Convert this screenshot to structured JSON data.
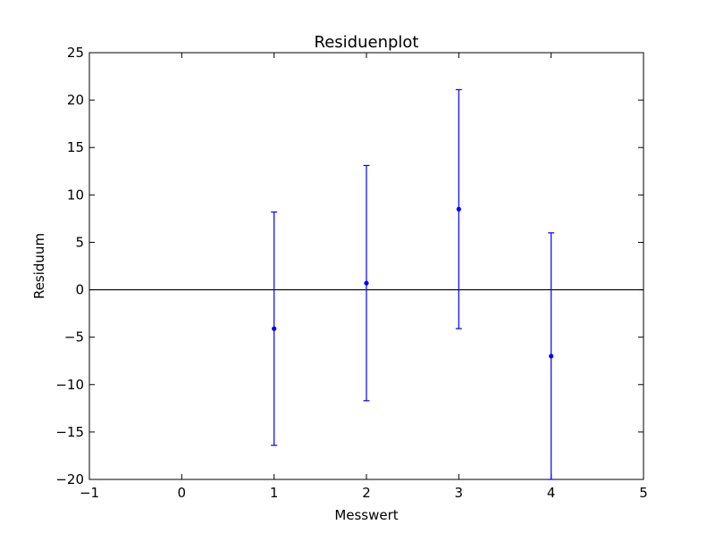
{
  "chart_data": {
    "type": "scatter",
    "title": "Residuenplot",
    "xlabel": "Messwert",
    "ylabel": "Residuum",
    "xlim": [
      -1,
      5
    ],
    "ylim": [
      -20,
      25
    ],
    "x_ticks": [
      -1,
      0,
      1,
      2,
      3,
      4,
      5
    ],
    "y_ticks": [
      -20,
      -15,
      -10,
      -5,
      0,
      5,
      10,
      15,
      20,
      25
    ],
    "x_tick_labels": [
      "−1",
      "0",
      "1",
      "2",
      "3",
      "4",
      "5"
    ],
    "y_tick_labels": [
      "−20",
      "−15",
      "−10",
      "−5",
      "0",
      "5",
      "10",
      "15",
      "20",
      "25"
    ],
    "grid": false,
    "reference_line": 0,
    "series": [
      {
        "color": "#0000ff",
        "x": [
          1,
          2,
          3,
          4
        ],
        "y": [
          -4.1,
          0.7,
          8.5,
          -7.0
        ],
        "yerr": [
          12.3,
          12.4,
          12.6,
          13.0
        ]
      }
    ]
  }
}
